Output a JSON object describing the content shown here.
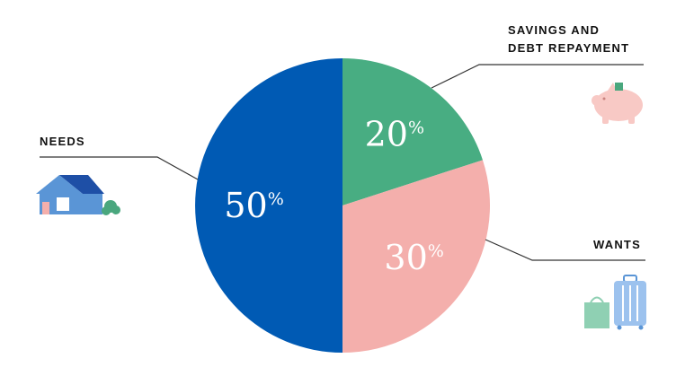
{
  "chart_data": {
    "type": "pie",
    "title": "",
    "slices": [
      {
        "key": "savings",
        "label_lines": [
          "SAVINGS AND",
          "DEBT REPAYMENT"
        ],
        "value": 20,
        "value_label": "20",
        "unit": "%",
        "color": "#48ad82",
        "icon": "piggy-bank-icon"
      },
      {
        "key": "wants",
        "label_lines": [
          "WANTS"
        ],
        "value": 30,
        "value_label": "30",
        "unit": "%",
        "color": "#f4afac",
        "icon": "shopping-bag-suitcase-icon"
      },
      {
        "key": "needs",
        "label_lines": [
          "NEEDS"
        ],
        "value": 50,
        "value_label": "50",
        "unit": "%",
        "color": "#005ab4",
        "icon": "house-icon"
      }
    ],
    "start_angle": "12 o'clock",
    "direction": "clockwise",
    "legend": "callouts"
  },
  "colors": {
    "leader_line": "#333333",
    "piggy": "#f8c9c5",
    "coin": "#4aa77e",
    "house_blue": "#5a95d6",
    "house_dark": "#1e4fa6",
    "bush": "#4aa77e",
    "bag": "#8fd0b3",
    "suitcase": "#9cc2ee"
  }
}
